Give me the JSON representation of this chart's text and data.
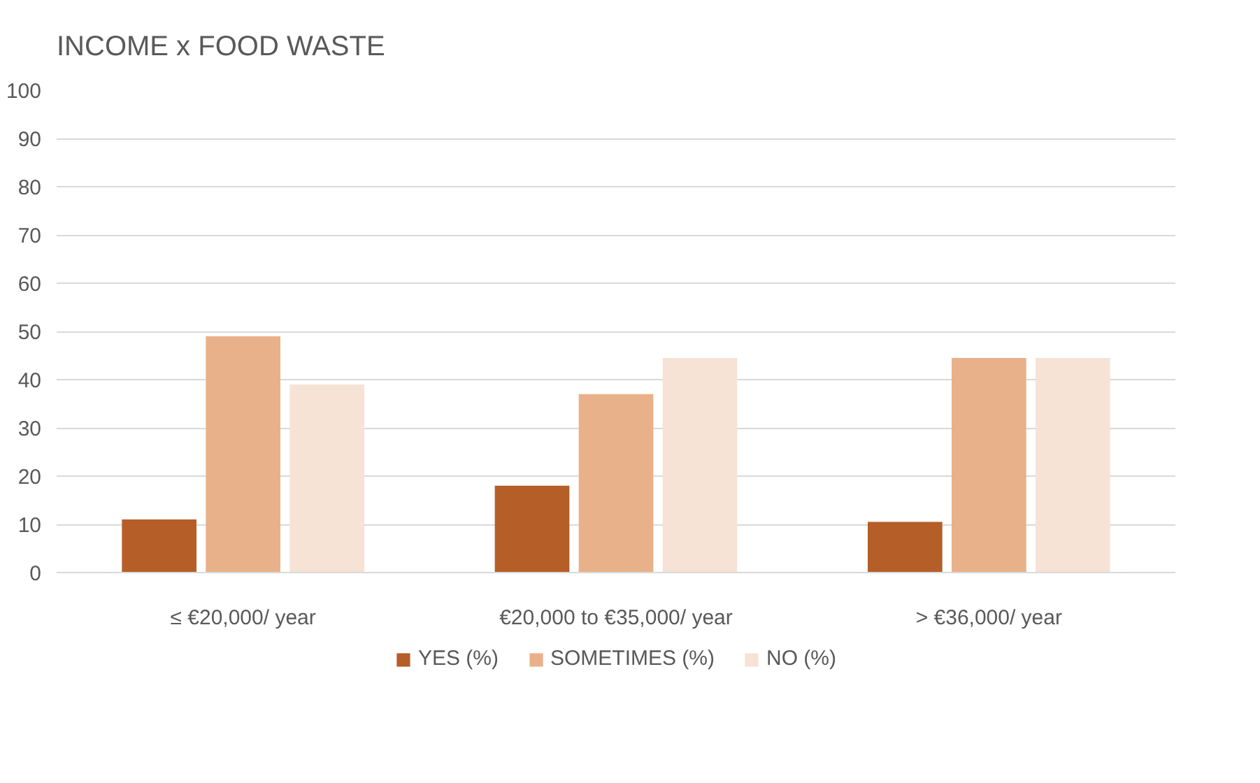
{
  "chart_data": {
    "type": "bar",
    "title": "INCOME x FOOD WASTE",
    "categories": [
      "≤ €20,000/ year",
      "€20,000 to €35,000/ year",
      "> €36,000/ year"
    ],
    "series": [
      {
        "name": "YES (%)",
        "color": "#b55e28",
        "values": [
          11,
          18,
          10.5
        ]
      },
      {
        "name": "SOMETIMES (%)",
        "color": "#e9b189",
        "values": [
          49,
          37,
          44.5
        ]
      },
      {
        "name": "NO (%)",
        "color": "#f6e3d6",
        "values": [
          39,
          44.5,
          44.5
        ]
      }
    ],
    "ylim": [
      0,
      100
    ],
    "yticks": [
      0,
      10,
      20,
      30,
      40,
      50,
      60,
      70,
      80,
      90,
      100
    ],
    "grid": "y",
    "legend": "bottom"
  }
}
